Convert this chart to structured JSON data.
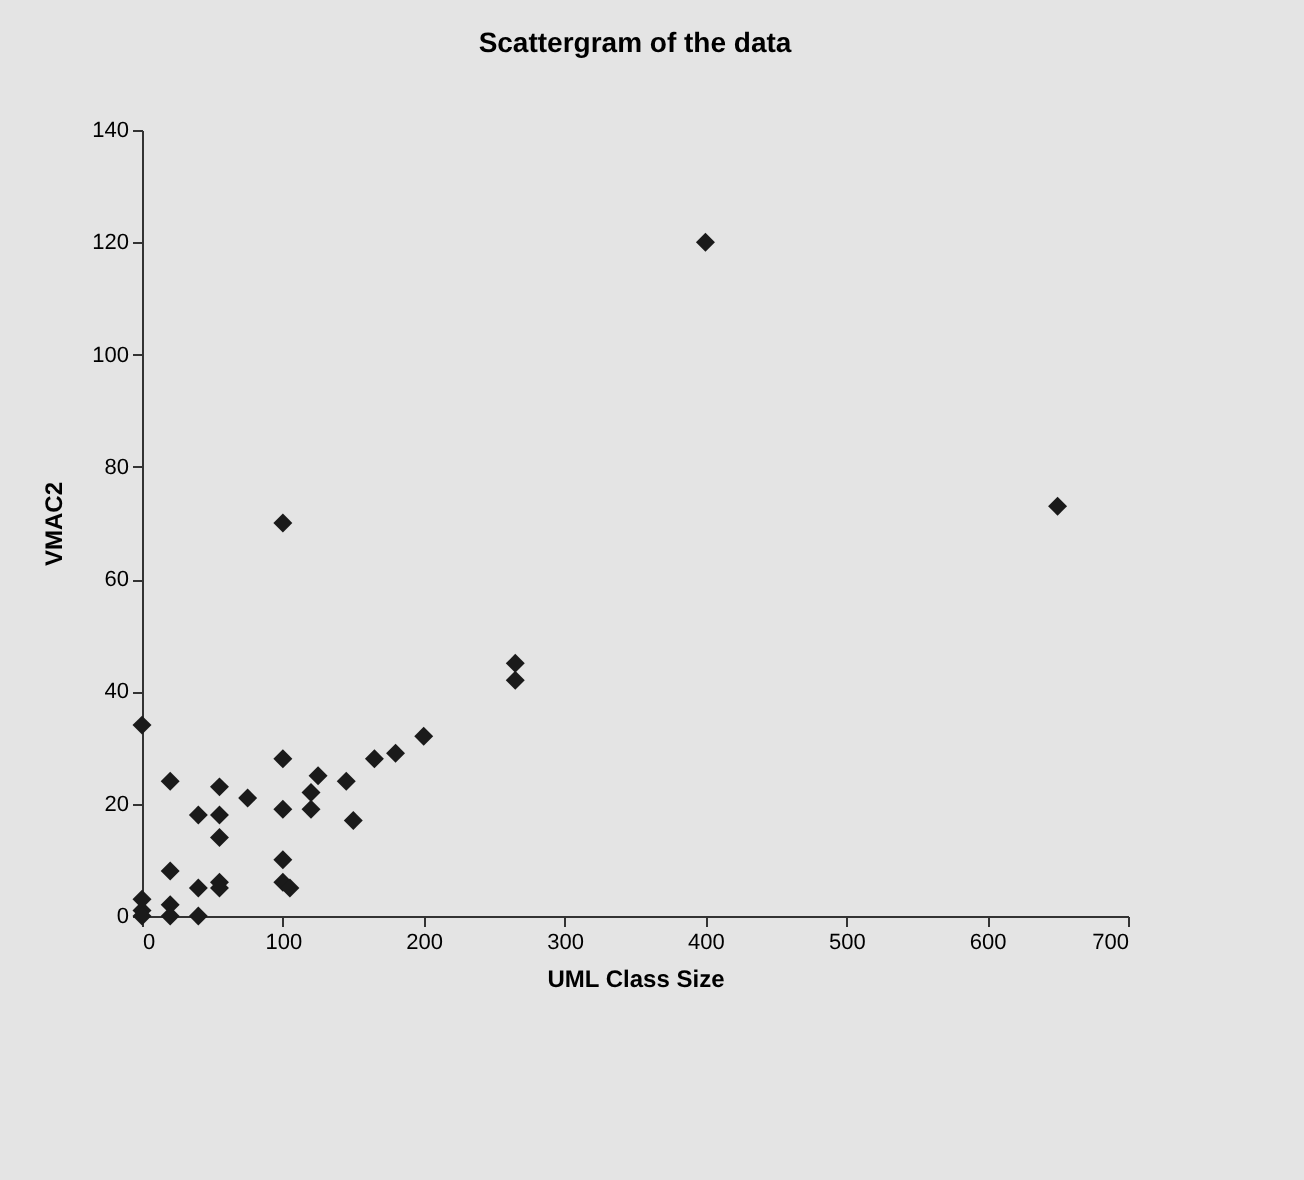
{
  "chart_data": {
    "type": "scatter",
    "title": "Scattergram of the data",
    "xlabel": "UML Class Size",
    "ylabel": "VMAC2",
    "marker": "diamond",
    "grid": false,
    "xlim": [
      0,
      700
    ],
    "xticks": [
      0,
      100,
      200,
      300,
      400,
      500,
      600,
      700
    ],
    "ylim": [
      0,
      140
    ],
    "yticks": [
      0,
      20,
      40,
      60,
      80,
      100,
      120,
      140
    ],
    "x": [
      0,
      0,
      0,
      0,
      20,
      20,
      20,
      20,
      40,
      40,
      40,
      55,
      55,
      55,
      55,
      55,
      75,
      100,
      100,
      100,
      100,
      105,
      100,
      120,
      120,
      125,
      145,
      150,
      165,
      180,
      200,
      265,
      265,
      400,
      650
    ],
    "series": [
      {
        "color": "#1a1a1a",
        "values": [
          34,
          3,
          1,
          0,
          24,
          8,
          2,
          0,
          18,
          5,
          0,
          23,
          18,
          14,
          6,
          5,
          21,
          28,
          19,
          10,
          6,
          5,
          70,
          19,
          22,
          25,
          24,
          17,
          28,
          29,
          32,
          42,
          45,
          120,
          73
        ]
      }
    ]
  }
}
